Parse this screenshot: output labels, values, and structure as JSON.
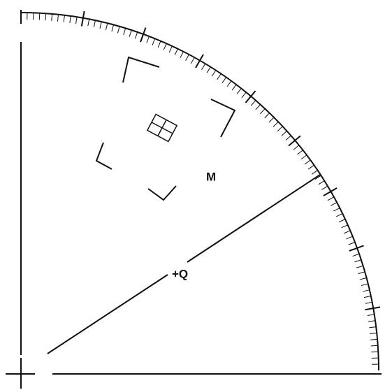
{
  "nodes": [
    {
      "label": "M"
    },
    {
      "label": "+Q"
    }
  ]
}
